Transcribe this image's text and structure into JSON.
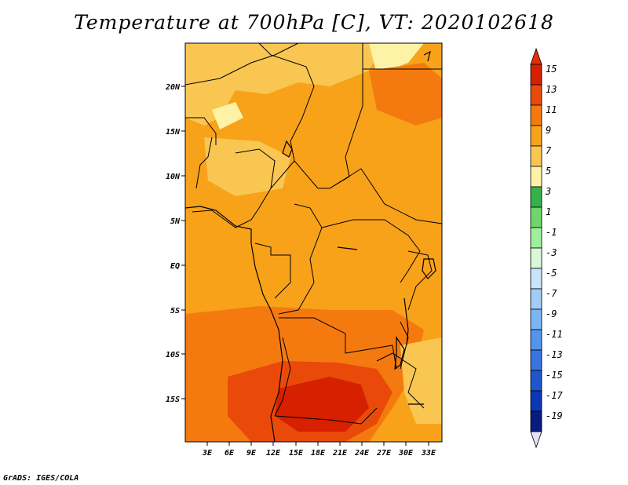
{
  "title": "Temperature at 700hPa [C], VT: 2020102618",
  "credit": "GrADS: IGES/COLA",
  "map": {
    "lat_labels": [
      "20N",
      "15N",
      "10N",
      "5N",
      "EQ",
      "5S",
      "10S",
      "15S"
    ],
    "lon_labels": [
      "3E",
      "6E",
      "9E",
      "12E",
      "15E",
      "18E",
      "21E",
      "24E",
      "27E",
      "30E",
      "33E"
    ]
  },
  "colorbar": {
    "labels": [
      "15",
      "13",
      "11",
      "9",
      "7",
      "5",
      "3",
      "1",
      "-1",
      "-3",
      "-5",
      "-7",
      "-9",
      "-11",
      "-13",
      "-15",
      "-17",
      "-19"
    ],
    "colors": [
      "#d62000",
      "#e94a0a",
      "#f47a10",
      "#f8a21a",
      "#f9c652",
      "#fdf2a5",
      "#33b24a",
      "#6ed66a",
      "#9ff09a",
      "#d8f8d8",
      "#c8e4fa",
      "#9fcdf7",
      "#7bb5f3",
      "#5495eb",
      "#3a74e0",
      "#1e56cf",
      "#0d36b6",
      "#061c80"
    ],
    "over_color": "#e3300a",
    "under_color": "#e7e2f9"
  }
}
